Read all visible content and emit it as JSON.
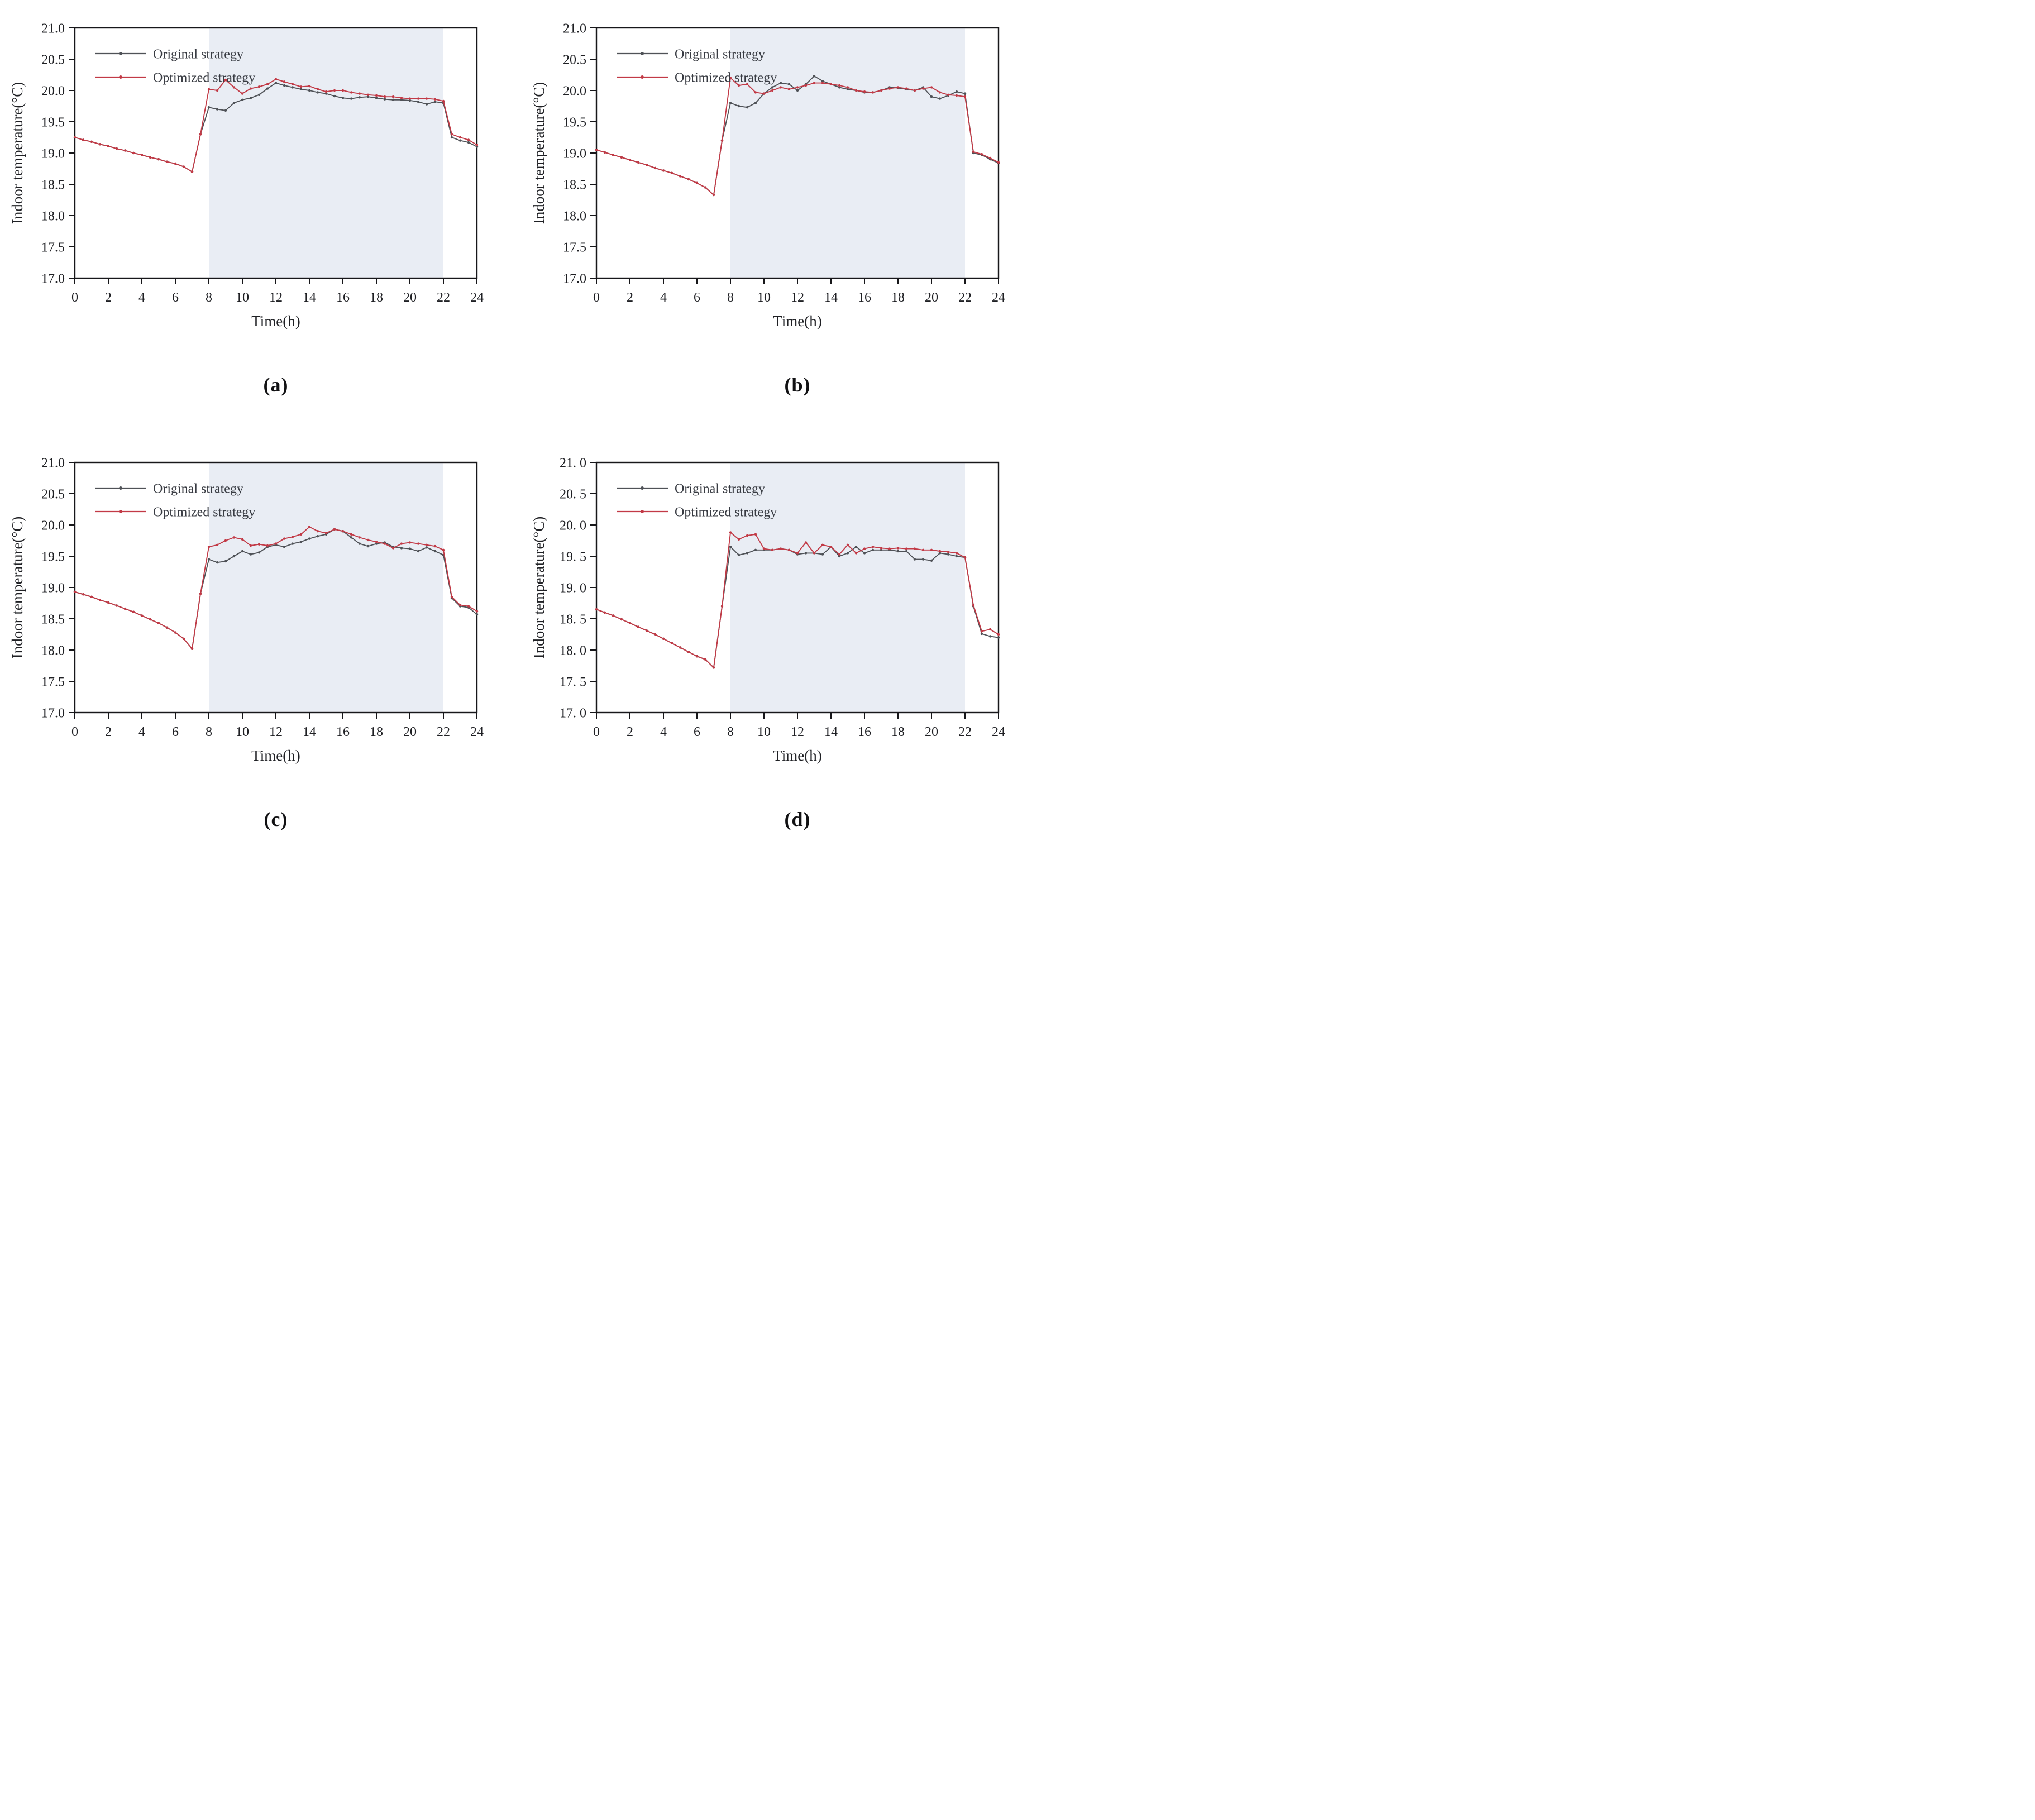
{
  "figure": {
    "background": "#ffffff",
    "axis_color": "#17171a",
    "text_color": "#1f2024",
    "legend_text_color": "#383b42"
  },
  "chart_data": [
    {
      "id": "a",
      "type": "line",
      "caption": "(a)",
      "xlabel": "Time(h)",
      "ylabel": "Indoor temperature(°C)",
      "xlim": [
        0,
        24
      ],
      "ylim": [
        17.0,
        21.0
      ],
      "xtick_values": [
        0,
        2,
        4,
        6,
        8,
        10,
        12,
        14,
        16,
        18,
        20,
        22,
        24
      ],
      "xtick_labels": [
        "0",
        "2",
        "4",
        "6",
        "8",
        "10",
        "12",
        "14",
        "16",
        "18",
        "20",
        "22",
        "24"
      ],
      "ytick_values": [
        17.0,
        17.5,
        18.0,
        18.5,
        19.0,
        19.5,
        20.0,
        20.5,
        21.0
      ],
      "ytick_labels": [
        "17.0",
        "17.5",
        "18.0",
        "18.5",
        "19.0",
        "19.5",
        "20.0",
        "20.5",
        "21.0"
      ],
      "grid": false,
      "legend_position": "top-left",
      "shaded_region": {
        "x0": 8,
        "x1": 22,
        "color": "#e9edf4"
      },
      "x_start": 0,
      "x_step": 0.5,
      "series": [
        {
          "name": "Original strategy",
          "color": "#4f5257",
          "marker": "dot",
          "values": [
            19.25,
            19.21,
            19.18,
            19.14,
            19.11,
            19.07,
            19.04,
            19.0,
            18.97,
            18.93,
            18.9,
            18.86,
            18.83,
            18.78,
            18.7,
            19.3,
            19.73,
            19.7,
            19.68,
            19.8,
            19.85,
            19.88,
            19.93,
            20.03,
            20.12,
            20.08,
            20.05,
            20.02,
            20.0,
            19.97,
            19.95,
            19.91,
            19.88,
            19.87,
            19.89,
            19.9,
            19.88,
            19.86,
            19.85,
            19.85,
            19.84,
            19.82,
            19.78,
            19.82,
            19.8,
            19.25,
            19.2,
            19.17,
            19.1
          ]
        },
        {
          "name": "Optimized strategy",
          "color": "#c23a46",
          "marker": "dot",
          "values": [
            19.25,
            19.21,
            19.18,
            19.14,
            19.11,
            19.07,
            19.04,
            19.0,
            18.97,
            18.93,
            18.9,
            18.86,
            18.83,
            18.78,
            18.7,
            19.3,
            20.02,
            20.0,
            20.17,
            20.05,
            19.95,
            20.03,
            20.06,
            20.1,
            20.18,
            20.14,
            20.1,
            20.06,
            20.07,
            20.02,
            19.98,
            20.0,
            20.0,
            19.97,
            19.95,
            19.93,
            19.92,
            19.9,
            19.9,
            19.88,
            19.87,
            19.87,
            19.87,
            19.86,
            19.83,
            19.3,
            19.25,
            19.21,
            19.13
          ]
        }
      ]
    },
    {
      "id": "b",
      "type": "line",
      "caption": "(b)",
      "xlabel": "Time(h)",
      "ylabel": "Indoor temperature(°C)",
      "xlim": [
        0,
        24
      ],
      "ylim": [
        17.0,
        21.0
      ],
      "xtick_values": [
        0,
        2,
        4,
        6,
        8,
        10,
        12,
        14,
        16,
        18,
        20,
        22,
        24
      ],
      "xtick_labels": [
        "0",
        "2",
        "4",
        "6",
        "8",
        "10",
        "12",
        "14",
        "16",
        "18",
        "20",
        "22",
        "24"
      ],
      "ytick_values": [
        17.0,
        17.5,
        18.0,
        18.5,
        19.0,
        19.5,
        20.0,
        20.5,
        21.0
      ],
      "ytick_labels": [
        "17.0",
        "17.5",
        "18.0",
        "18.5",
        "19.0",
        "19.5",
        "20.0",
        "20.5",
        "21.0"
      ],
      "grid": false,
      "legend_position": "top-left",
      "shaded_region": {
        "x0": 8,
        "x1": 22,
        "color": "#e9edf4"
      },
      "x_start": 0,
      "x_step": 0.5,
      "series": [
        {
          "name": "Original strategy",
          "color": "#4f5257",
          "marker": "dot",
          "values": [
            19.05,
            19.01,
            18.97,
            18.93,
            18.89,
            18.85,
            18.81,
            18.76,
            18.72,
            18.68,
            18.63,
            18.58,
            18.52,
            18.45,
            18.33,
            19.2,
            19.8,
            19.75,
            19.73,
            19.8,
            19.95,
            20.05,
            20.12,
            20.1,
            20.0,
            20.1,
            20.23,
            20.15,
            20.1,
            20.05,
            20.02,
            20.0,
            19.97,
            19.97,
            20.0,
            20.05,
            20.04,
            20.02,
            20.0,
            20.05,
            19.9,
            19.87,
            19.92,
            19.98,
            19.95,
            19.0,
            18.97,
            18.9,
            18.84
          ]
        },
        {
          "name": "Optimized strategy",
          "color": "#c23a46",
          "marker": "dot",
          "values": [
            19.05,
            19.01,
            18.97,
            18.93,
            18.89,
            18.85,
            18.81,
            18.76,
            18.72,
            18.68,
            18.63,
            18.58,
            18.52,
            18.45,
            18.33,
            19.2,
            20.2,
            20.08,
            20.1,
            19.97,
            19.95,
            20.0,
            20.05,
            20.02,
            20.05,
            20.08,
            20.12,
            20.12,
            20.1,
            20.08,
            20.05,
            20.0,
            19.98,
            19.97,
            20.0,
            20.03,
            20.05,
            20.03,
            20.0,
            20.03,
            20.05,
            19.97,
            19.93,
            19.92,
            19.9,
            19.02,
            18.98,
            18.92,
            18.85
          ]
        }
      ]
    },
    {
      "id": "c",
      "type": "line",
      "caption": "(c)",
      "xlabel": "Time(h)",
      "ylabel": "Indoor temperature(°C)",
      "xlim": [
        0,
        24
      ],
      "ylim": [
        17.0,
        21.0
      ],
      "xtick_values": [
        0,
        2,
        4,
        6,
        8,
        10,
        12,
        14,
        16,
        18,
        20,
        22,
        24
      ],
      "xtick_labels": [
        "0",
        "2",
        "4",
        "6",
        "8",
        "10",
        "12",
        "14",
        "16",
        "18",
        "20",
        "22",
        "24"
      ],
      "ytick_values": [
        17.0,
        17.5,
        18.0,
        18.5,
        19.0,
        19.5,
        20.0,
        20.5,
        21.0
      ],
      "ytick_labels": [
        "17.0",
        "17.5",
        "18.0",
        "18.5",
        "19.0",
        "19.5",
        "20.0",
        "20.5",
        "21.0"
      ],
      "grid": false,
      "legend_position": "top-left",
      "shaded_region": {
        "x0": 8,
        "x1": 22,
        "color": "#e9edf4"
      },
      "x_start": 0,
      "x_step": 0.5,
      "series": [
        {
          "name": "Original strategy",
          "color": "#4f5257",
          "marker": "dot",
          "values": [
            18.93,
            18.89,
            18.85,
            18.8,
            18.76,
            18.71,
            18.66,
            18.61,
            18.55,
            18.49,
            18.43,
            18.36,
            18.28,
            18.18,
            18.02,
            18.9,
            19.45,
            19.4,
            19.42,
            19.5,
            19.58,
            19.53,
            19.56,
            19.65,
            19.68,
            19.65,
            19.7,
            19.73,
            19.78,
            19.82,
            19.85,
            19.93,
            19.9,
            19.8,
            19.7,
            19.66,
            19.7,
            19.72,
            19.65,
            19.63,
            19.62,
            19.58,
            19.64,
            19.58,
            19.52,
            18.83,
            18.7,
            18.68,
            18.57
          ]
        },
        {
          "name": "Optimized strategy",
          "color": "#c23a46",
          "marker": "dot",
          "values": [
            18.93,
            18.89,
            18.85,
            18.8,
            18.76,
            18.71,
            18.66,
            18.61,
            18.55,
            18.49,
            18.43,
            18.36,
            18.28,
            18.18,
            18.02,
            18.9,
            19.65,
            19.68,
            19.75,
            19.8,
            19.77,
            19.67,
            19.69,
            19.67,
            19.7,
            19.78,
            19.81,
            19.85,
            19.97,
            19.9,
            19.87,
            19.93,
            19.9,
            19.85,
            19.8,
            19.76,
            19.73,
            19.7,
            19.63,
            19.7,
            19.72,
            19.7,
            19.68,
            19.66,
            19.6,
            18.85,
            18.72,
            18.7,
            18.62
          ]
        }
      ]
    },
    {
      "id": "d",
      "type": "line",
      "caption": "(d)",
      "xlabel": "Time(h)",
      "ylabel": "Indoor temperature(°C)",
      "xlim": [
        0,
        24
      ],
      "ylim": [
        17.0,
        21.0
      ],
      "xtick_values": [
        0,
        2,
        4,
        6,
        8,
        10,
        12,
        14,
        16,
        18,
        20,
        22,
        24
      ],
      "xtick_labels": [
        "0",
        "2",
        "4",
        "6",
        "8",
        "10",
        "12",
        "14",
        "16",
        "18",
        "20",
        "22",
        "24"
      ],
      "ytick_values": [
        17.0,
        17.5,
        18.0,
        18.5,
        19.0,
        19.5,
        20.0,
        20.5,
        21.0
      ],
      "ytick_labels": [
        "17. 0",
        "17. 5",
        "18. 0",
        "18. 5",
        "19. 0",
        "19. 5",
        "20. 0",
        "20. 5",
        "21. 0"
      ],
      "grid": false,
      "legend_position": "top-left",
      "shaded_region": {
        "x0": 8,
        "x1": 22,
        "color": "#e9edf4"
      },
      "x_start": 0,
      "x_step": 0.5,
      "series": [
        {
          "name": "Original strategy",
          "color": "#4f5257",
          "marker": "dot",
          "values": [
            18.65,
            18.6,
            18.55,
            18.49,
            18.43,
            18.37,
            18.31,
            18.25,
            18.18,
            18.11,
            18.04,
            17.97,
            17.9,
            17.85,
            17.72,
            18.7,
            19.65,
            19.52,
            19.55,
            19.6,
            19.6,
            19.6,
            19.62,
            19.6,
            19.53,
            19.55,
            19.55,
            19.53,
            19.65,
            19.5,
            19.55,
            19.65,
            19.55,
            19.6,
            19.6,
            19.6,
            19.58,
            19.58,
            19.45,
            19.45,
            19.43,
            19.55,
            19.53,
            19.5,
            19.48,
            18.7,
            18.26,
            18.22,
            18.2
          ]
        },
        {
          "name": "Optimized strategy",
          "color": "#c23a46",
          "marker": "dot",
          "values": [
            18.65,
            18.6,
            18.55,
            18.49,
            18.43,
            18.37,
            18.31,
            18.25,
            18.18,
            18.11,
            18.04,
            17.97,
            17.9,
            17.85,
            17.72,
            18.7,
            19.88,
            19.77,
            19.83,
            19.85,
            19.62,
            19.6,
            19.62,
            19.6,
            19.55,
            19.72,
            19.55,
            19.68,
            19.65,
            19.53,
            19.68,
            19.55,
            19.62,
            19.65,
            19.63,
            19.62,
            19.63,
            19.62,
            19.62,
            19.6,
            19.6,
            19.58,
            19.57,
            19.55,
            19.48,
            18.72,
            18.3,
            18.33,
            18.25
          ]
        }
      ]
    }
  ]
}
